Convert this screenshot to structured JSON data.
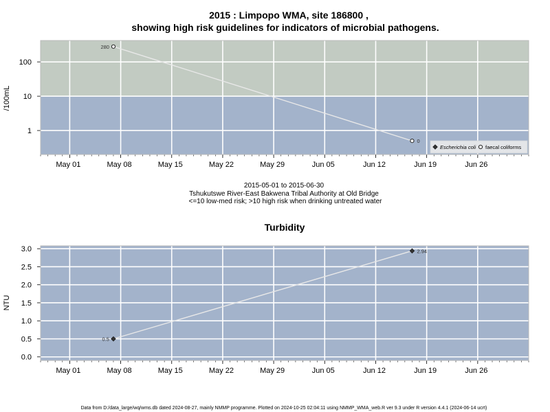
{
  "title_line1": "2015 : Limpopo WMA, site 186800 ,",
  "title_line2": "showing high risk guidelines for indicators of microbial pathogens.",
  "subtitle": [
    "2015-05-01 to 2015-06-30",
    "Tshukutswe River-East Bakwena Tribal Authority at Old Bridge",
    "<=10 low-med risk; >10 high risk when drinking untreated water"
  ],
  "footer": "Data from D:/data_large/wq/wms.db dated 2024-08-27, mainly NMMP programme. Plotted on 2024-10-25 02:04:11 using NMMP_WMA_web.R ver 9.3 under R version 4.4.1 (2024-06-14 ucrt)",
  "colors": {
    "high_risk_band": "#c2cbc2",
    "low_risk_band": "#a3b3cb",
    "grid": "#ffffff",
    "line": "#e8e8e8",
    "marker_filled": "#333333",
    "marker_open": "#ffffff"
  },
  "chart_data": [
    {
      "type": "line",
      "ylabel": "/100mL",
      "xlabel": "",
      "yscale": "log",
      "ylim": [
        0.2,
        420
      ],
      "xlim": [
        "2015-04-27",
        "2015-07-03"
      ],
      "x_ticks": [
        {
          "date": "2015-05-01",
          "label": "May 01"
        },
        {
          "date": "2015-05-08",
          "label": "May 08"
        },
        {
          "date": "2015-05-15",
          "label": "May 15"
        },
        {
          "date": "2015-05-22",
          "label": "May 22"
        },
        {
          "date": "2015-05-29",
          "label": "May 29"
        },
        {
          "date": "2015-06-05",
          "label": "Jun 05"
        },
        {
          "date": "2015-06-12",
          "label": "Jun 12"
        },
        {
          "date": "2015-06-19",
          "label": "Jun 19"
        },
        {
          "date": "2015-06-26",
          "label": "Jun 26"
        }
      ],
      "y_ticks": [
        1,
        10,
        100
      ],
      "y_tick_labels": [
        "1",
        "10",
        "100"
      ],
      "guideline": 10,
      "bands": [
        {
          "from": 10,
          "to": 420,
          "color": "#c2cbc2"
        },
        {
          "from": 0.2,
          "to": 10,
          "color": "#a3b3cb"
        }
      ],
      "series": [
        {
          "name": "faecal coliforms",
          "marker": "open-circle",
          "points": [
            {
              "date": "2015-05-07",
              "value": 280,
              "label": "280"
            },
            {
              "date": "2015-06-17",
              "value": 0.5,
              "label": "0"
            }
          ]
        }
      ],
      "legend": {
        "position": "bottom-right",
        "entries": [
          {
            "label": "Escherichia coli",
            "marker": "filled-diamond",
            "italic": true
          },
          {
            "label": "faecal coliforms",
            "marker": "open-circle",
            "italic": false
          }
        ]
      },
      "grid": true
    },
    {
      "type": "line",
      "title": "Turbidity",
      "ylabel": "NTU",
      "xlabel": "",
      "ylim": [
        -0.1,
        3.08
      ],
      "xlim": [
        "2015-04-27",
        "2015-07-03"
      ],
      "x_ticks": [
        {
          "date": "2015-05-01",
          "label": "May 01"
        },
        {
          "date": "2015-05-08",
          "label": "May 08"
        },
        {
          "date": "2015-05-15",
          "label": "May 15"
        },
        {
          "date": "2015-05-22",
          "label": "May 22"
        },
        {
          "date": "2015-05-29",
          "label": "May 29"
        },
        {
          "date": "2015-06-05",
          "label": "Jun 05"
        },
        {
          "date": "2015-06-12",
          "label": "Jun 12"
        },
        {
          "date": "2015-06-19",
          "label": "Jun 19"
        },
        {
          "date": "2015-06-26",
          "label": "Jun 26"
        }
      ],
      "y_ticks": [
        0,
        0.5,
        1,
        1.5,
        2,
        2.5,
        3
      ],
      "y_tick_labels": [
        "0.0",
        "0.5",
        "1.0",
        "1.5",
        "2.0",
        "2.5",
        "3.0"
      ],
      "series": [
        {
          "name": "",
          "marker": "filled-diamond",
          "points": [
            {
              "date": "2015-05-07",
              "value": 0.5,
              "label": "0.5"
            },
            {
              "date": "2015-06-17",
              "value": 2.94,
              "label": "2.94"
            }
          ]
        }
      ],
      "grid": true
    }
  ]
}
